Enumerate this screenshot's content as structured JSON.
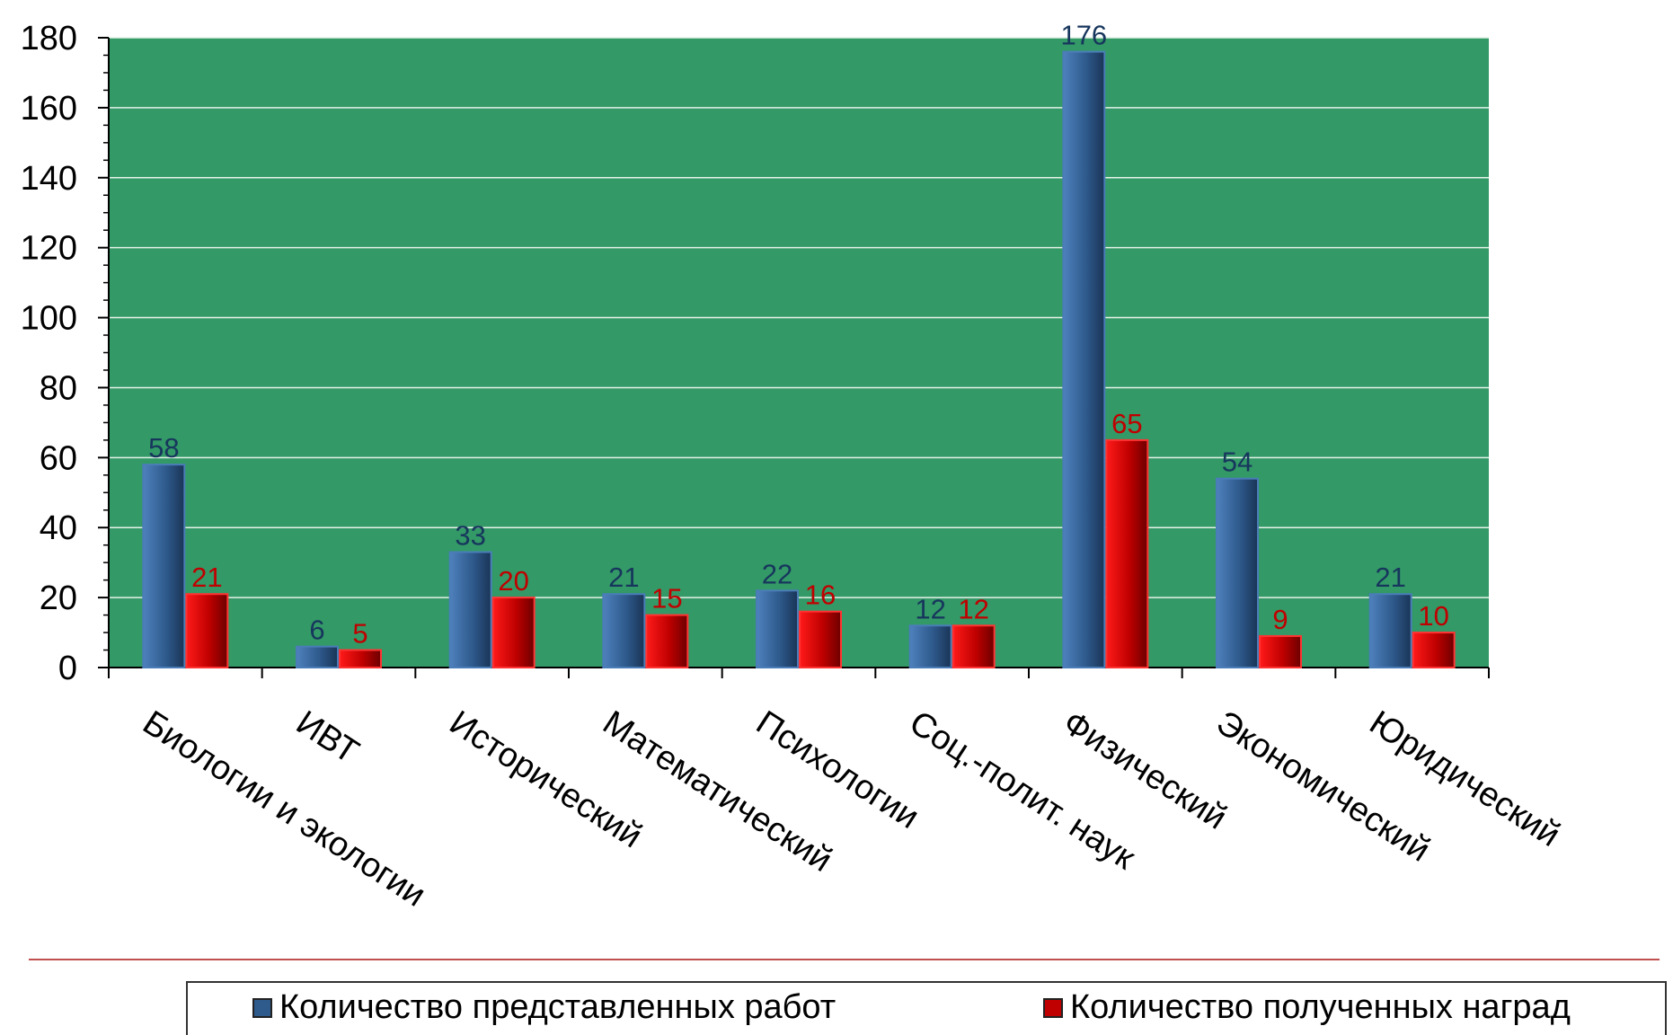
{
  "chart_data": {
    "type": "bar",
    "categories": [
      "Биологии и экологии",
      "ИВТ",
      "Исторический",
      "Математический",
      "Психологии",
      "Соц.-полит. наук",
      "Физический",
      "Экономический",
      "Юридический"
    ],
    "series": [
      {
        "name": "Количество представленных работ",
        "values": [
          58,
          6,
          33,
          21,
          22,
          12,
          176,
          54,
          21
        ],
        "color": "#2e5a8c",
        "label_color": "#17365d"
      },
      {
        "name": "Количество полученных наград",
        "values": [
          21,
          5,
          20,
          15,
          16,
          12,
          65,
          9,
          10
        ],
        "color": "#c00000",
        "label_color": "#c00000"
      }
    ],
    "ylim": [
      0,
      180
    ],
    "yticks": [
      0,
      20,
      40,
      60,
      80,
      100,
      120,
      140,
      160,
      180
    ],
    "plot_background": "#339966",
    "grid": true,
    "legend_position": "bottom"
  }
}
